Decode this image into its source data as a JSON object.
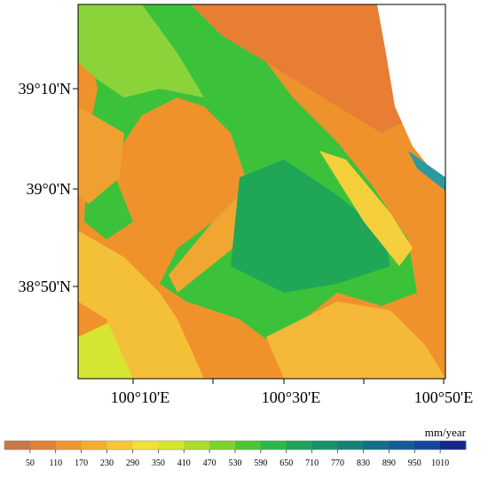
{
  "map": {
    "lat_labels": [
      "39°10'N",
      "39°0'N",
      "38°50'N"
    ],
    "lon_labels": [
      "100°10'E",
      "100°30'E",
      "100°50'E"
    ]
  },
  "legend": {
    "unit": "mm/year",
    "ticks": [
      50,
      110,
      170,
      230,
      290,
      350,
      410,
      470,
      530,
      590,
      650,
      710,
      770,
      830,
      890,
      950,
      1010
    ],
    "colors": [
      "#c8784a",
      "#e0803a",
      "#ec9632",
      "#f2ae34",
      "#f5c83a",
      "#f2e03a",
      "#d6e432",
      "#aedc30",
      "#7ed22e",
      "#4cc634",
      "#2cb848",
      "#1ea458",
      "#17906a",
      "#158078",
      "#146e88",
      "#135a98",
      "#1346a0",
      "#14288a"
    ]
  }
}
